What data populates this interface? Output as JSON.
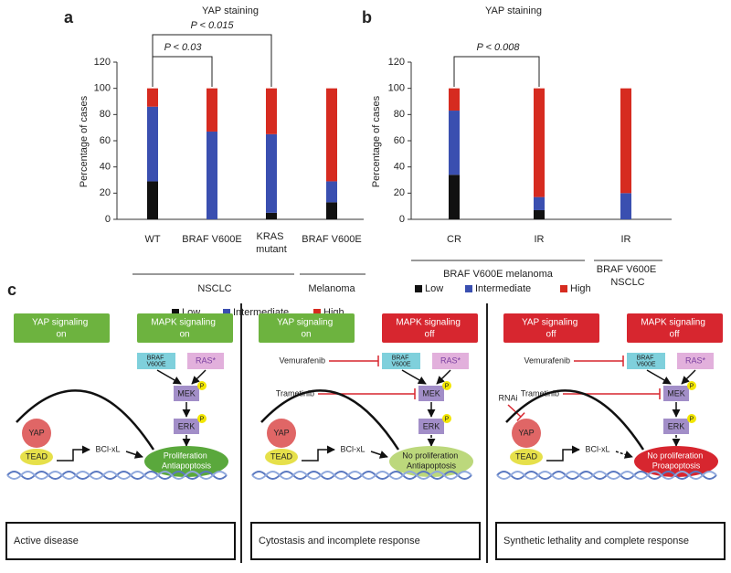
{
  "chart_data": [
    {
      "type": "bar",
      "stacked": true,
      "label": "a",
      "title": "YAP staining",
      "y_label": "Percentage of cases",
      "categories": [
        "WT",
        "BRAF V600E",
        "KRAS mutant",
        "BRAF V600E"
      ],
      "groups": [
        "NSCLC",
        "Melanoma"
      ],
      "series": [
        {
          "name": "Low",
          "color": "#111111",
          "values": [
            29,
            0,
            5,
            13
          ]
        },
        {
          "name": "Intermediate",
          "color": "#3a4fb0",
          "values": [
            57,
            67,
            60,
            16
          ]
        },
        {
          "name": "High",
          "color": "#d62b20",
          "values": [
            14,
            33,
            35,
            71
          ]
        }
      ],
      "annotations": [
        "P < 0.015",
        "P < 0.03"
      ],
      "ylim": [
        0,
        120
      ],
      "yticks": [
        0,
        20,
        40,
        60,
        80,
        100,
        120
      ]
    },
    {
      "type": "bar",
      "stacked": true,
      "label": "b",
      "title": "YAP staining",
      "y_label": "Percentage of cases",
      "categories": [
        "CR",
        "IR",
        "IR"
      ],
      "groups": [
        "BRAF V600E melanoma",
        "BRAF V600E NSCLC"
      ],
      "series": [
        {
          "name": "Low",
          "color": "#111111",
          "values": [
            34,
            7,
            0
          ]
        },
        {
          "name": "Intermediate",
          "color": "#3a4fb0",
          "values": [
            49,
            10,
            20
          ]
        },
        {
          "name": "High",
          "color": "#d62b20",
          "values": [
            17,
            83,
            80
          ]
        }
      ],
      "annotations": [
        "P < 0.008"
      ],
      "ylim": [
        0,
        120
      ],
      "yticks": [
        0,
        20,
        40,
        60,
        80,
        100,
        120
      ]
    }
  ],
  "diagram": {
    "label": "c",
    "panels": [
      {
        "yap_box": {
          "text": "YAP signaling on",
          "color": "#6db33f"
        },
        "mapk_box": {
          "text": "MAPK signaling on",
          "color": "#6db33f"
        },
        "braf": "BRAF V600E",
        "ras": "RAS*",
        "mek": "MEK",
        "erk": "ERK",
        "phospho": "P",
        "yap": "YAP",
        "tead": "TEAD",
        "bcl": "BCl-xL",
        "outcome": {
          "text": "Proliferation Antiapoptosis",
          "color": "#5aa83c"
        },
        "caption": "Active disease"
      },
      {
        "yap_box": {
          "text": "YAP signaling on",
          "color": "#6db33f"
        },
        "mapk_box": {
          "text": "MAPK signaling off",
          "color": "#d7262f"
        },
        "vemurafenib": "Vemurafenib",
        "trametinib": "Trametinib",
        "braf": "BRAF V600E",
        "ras": "RAS*",
        "mek": "MEK",
        "erk": "ERK",
        "phospho": "P",
        "yap": "YAP",
        "tead": "TEAD",
        "bcl": "BCl-xL",
        "outcome": {
          "text": "No proliferation Antiapoptosis",
          "color": "#bcd87c"
        },
        "caption": "Cytostasis and incomplete response"
      },
      {
        "yap_box": {
          "text": "YAP signaling off",
          "color": "#d7262f"
        },
        "mapk_box": {
          "text": "MAPK signaling off",
          "color": "#d7262f"
        },
        "vemurafenib": "Vemurafenib",
        "trametinib": "Trametinib",
        "rnai": "RNAi",
        "braf": "BRAF V600E",
        "ras": "RAS*",
        "mek": "MEK",
        "erk": "ERK",
        "phospho": "P",
        "yap": "YAP",
        "tead": "TEAD",
        "bcl": "BCl-xL",
        "outcome": {
          "text": "No proliferation Proapoptosis",
          "color": "#d7262f"
        },
        "caption": "Synthetic lethality and complete response"
      }
    ]
  }
}
